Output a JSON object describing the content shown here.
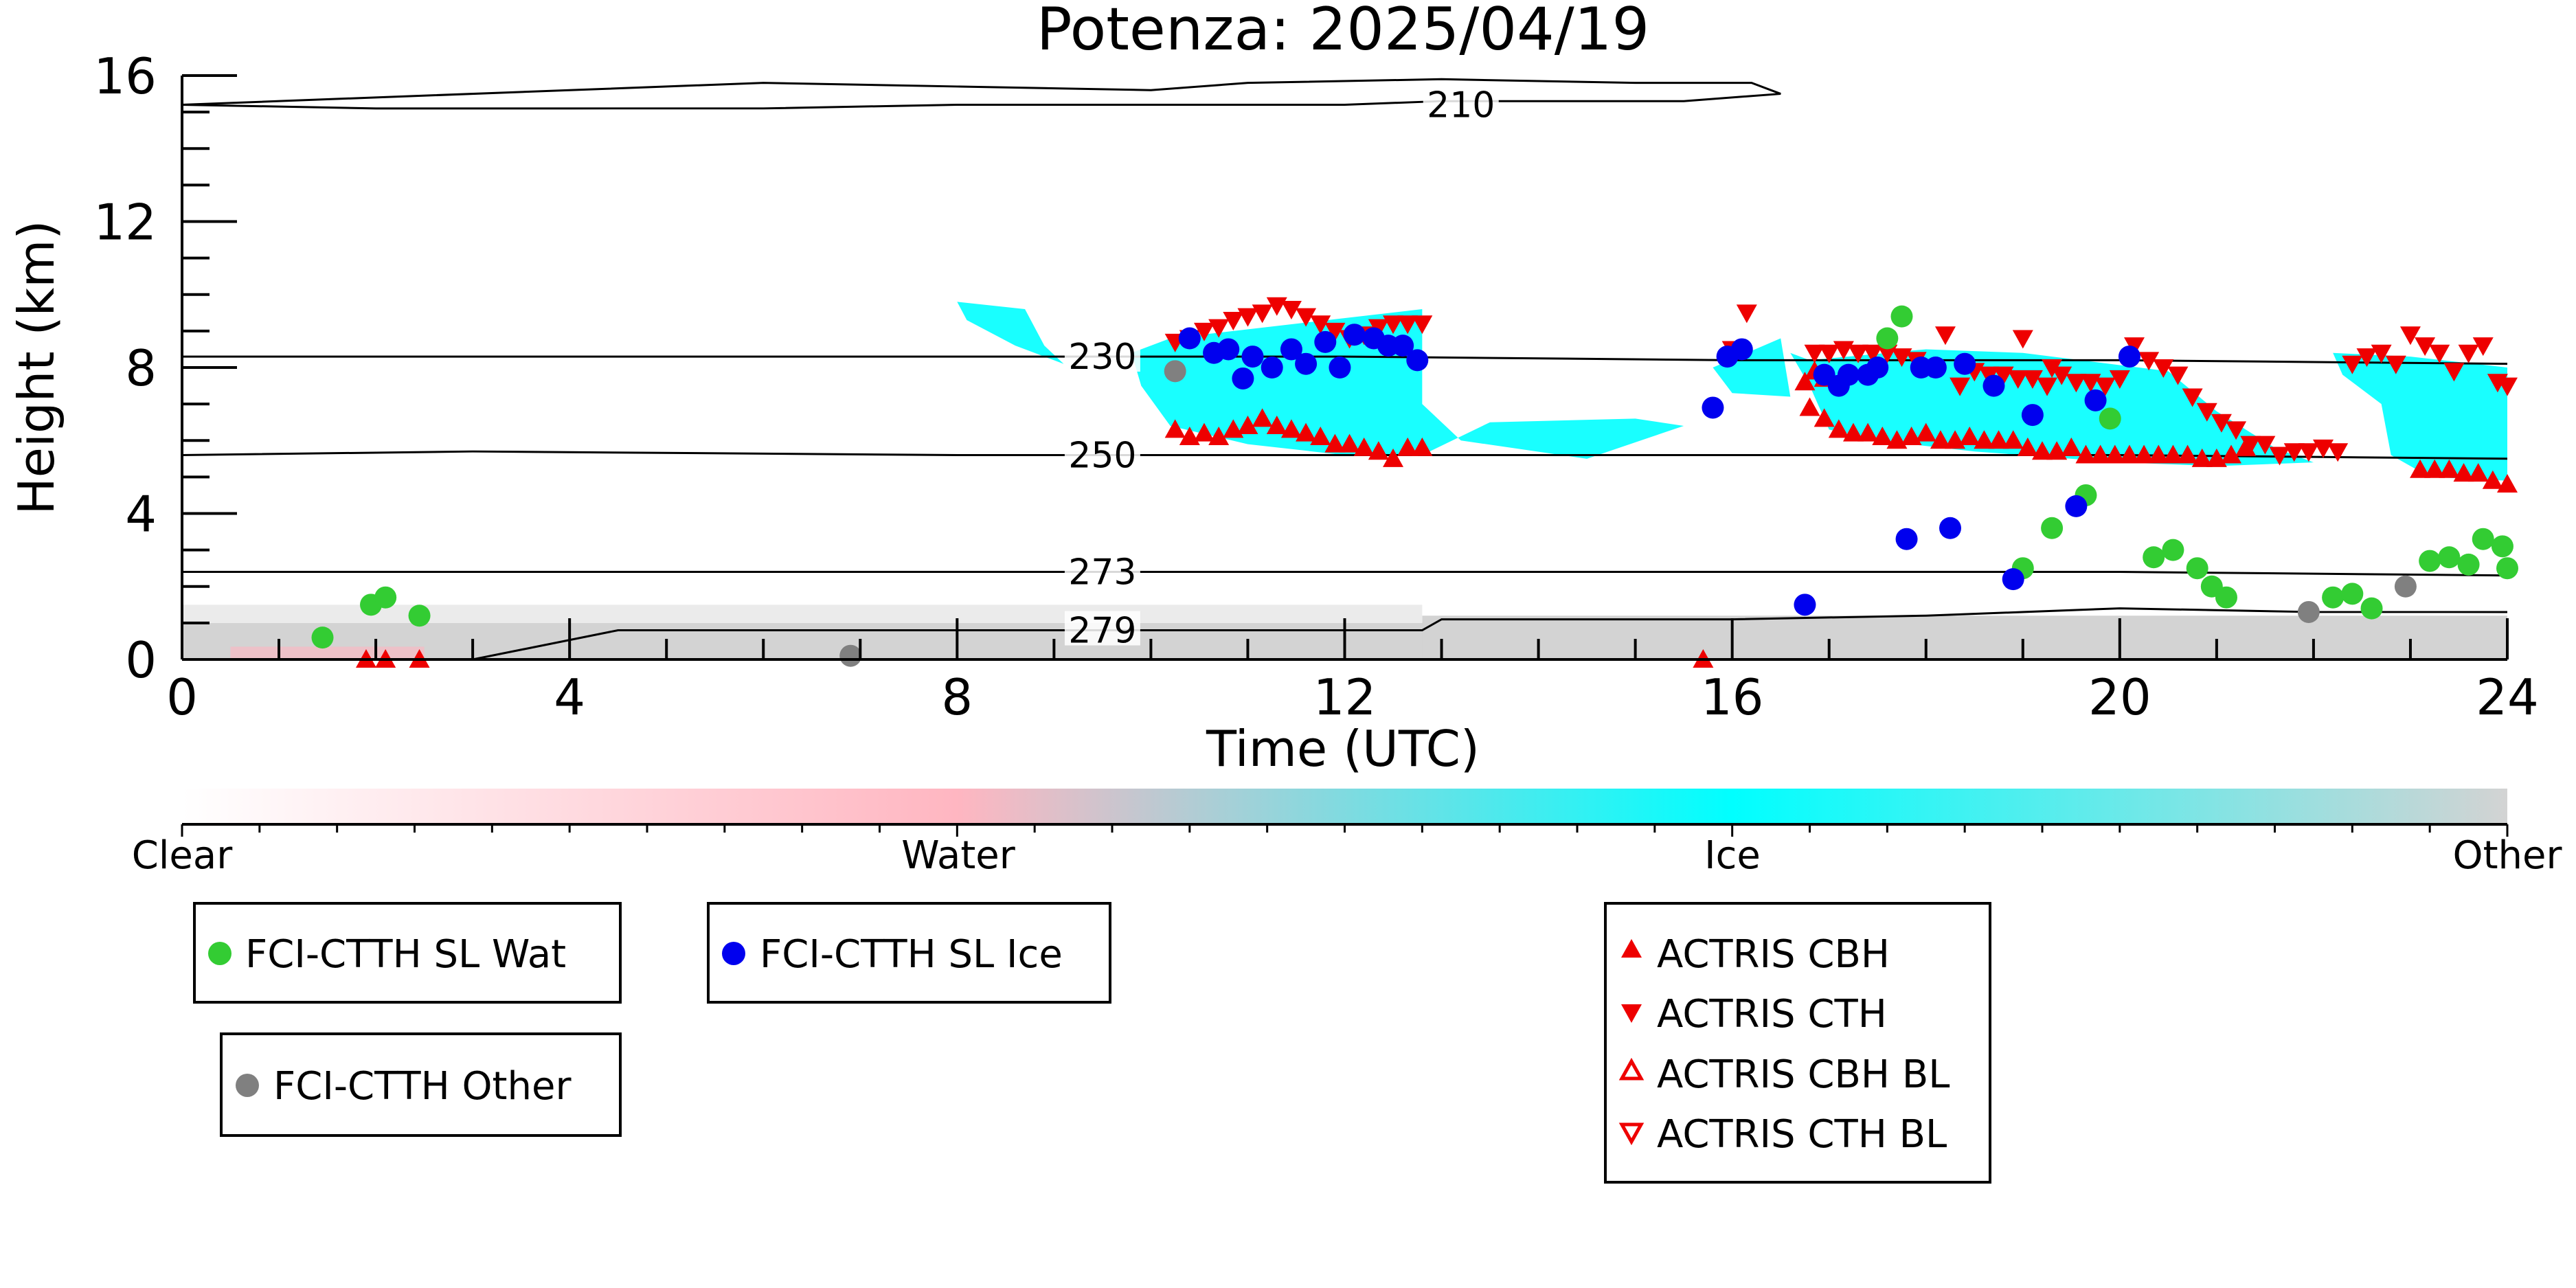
{
  "chart_data": {
    "type": "scatter",
    "title": "Potenza: 2025/04/19",
    "xlabel": "Time (UTC)",
    "ylabel": "Height (km)",
    "xlim": [
      0,
      24
    ],
    "ylim": [
      0,
      16
    ],
    "x_ticks": [
      "0",
      "4",
      "8",
      "12",
      "16",
      "20",
      "24"
    ],
    "y_ticks": [
      "0",
      "4",
      "8",
      "12",
      "16"
    ],
    "grid": false,
    "colorbar": {
      "labels": [
        "Clear",
        "Water",
        "Ice",
        "Other"
      ],
      "colors": [
        "#ffffff",
        "#ffb6c1",
        "#00ffff",
        "#d3d3d3"
      ]
    },
    "contours": [
      {
        "label": "210",
        "points": [
          [
            0,
            15.2
          ],
          [
            2,
            15.4
          ],
          [
            4,
            15.6
          ],
          [
            6,
            15.8
          ],
          [
            8,
            15.7
          ],
          [
            10,
            15.6
          ],
          [
            11,
            15.8
          ],
          [
            13,
            15.9
          ],
          [
            15,
            15.8
          ],
          [
            16.2,
            15.8
          ],
          [
            16.5,
            15.5
          ],
          [
            15.5,
            15.3
          ],
          [
            13,
            15.3
          ],
          [
            12,
            15.2
          ],
          [
            10,
            15.2
          ],
          [
            8,
            15.2
          ],
          [
            6,
            15.1
          ],
          [
            4,
            15.1
          ],
          [
            2,
            15.1
          ],
          [
            0,
            15.2
          ]
        ]
      },
      {
        "label": "230",
        "points": [
          [
            0,
            8.3
          ],
          [
            4,
            8.3
          ],
          [
            8,
            8.3
          ],
          [
            12,
            8.3
          ],
          [
            16,
            8.2
          ],
          [
            20,
            8.2
          ],
          [
            24,
            8.1
          ]
        ]
      },
      {
        "label": "250",
        "points": [
          [
            0,
            5.6
          ],
          [
            3,
            5.7
          ],
          [
            8,
            5.6
          ],
          [
            12,
            5.6
          ],
          [
            16,
            5.6
          ],
          [
            20,
            5.6
          ],
          [
            24,
            5.5
          ]
        ]
      },
      {
        "label": "273",
        "points": [
          [
            0,
            2.4
          ],
          [
            4,
            2.4
          ],
          [
            8,
            2.4
          ],
          [
            12,
            2.4
          ],
          [
            16,
            2.4
          ],
          [
            20,
            2.4
          ],
          [
            24,
            2.3
          ]
        ]
      },
      {
        "label": "279",
        "points": [
          [
            3,
            0
          ],
          [
            4.5,
            0.8
          ],
          [
            8,
            0.8
          ],
          [
            11,
            0.8
          ],
          [
            12.8,
            0.8
          ],
          [
            13,
            1.1
          ],
          [
            16,
            1.1
          ],
          [
            18,
            1.2
          ],
          [
            20,
            1.4
          ],
          [
            22,
            1.3
          ],
          [
            24,
            1.3
          ]
        ]
      }
    ],
    "series": [
      {
        "name": "FCI-CTTH SL Wat",
        "color": "#33cc33",
        "marker": "circle",
        "x": [
          1.45,
          1.95,
          2.1,
          2.45,
          17.6,
          17.75,
          19.0,
          19.3,
          19.65,
          19.9,
          20.35,
          20.55,
          20.8,
          20.95,
          21.1,
          22.2,
          22.4,
          22.6,
          23.2,
          23.4,
          23.6,
          23.75,
          23.95,
          24.0
        ],
        "y": [
          0.6,
          1.5,
          1.7,
          1.2,
          8.8,
          9.4,
          2.5,
          3.6,
          4.5,
          6.6,
          2.8,
          3.0,
          2.5,
          2.0,
          1.7,
          1.7,
          1.8,
          1.4,
          2.7,
          2.8,
          2.6,
          3.3,
          3.1,
          2.5
        ]
      },
      {
        "name": "FCI-CTTH SL Ice",
        "color": "#0000ee",
        "marker": "circle",
        "x": [
          10.4,
          10.65,
          10.8,
          10.95,
          11.05,
          11.25,
          11.45,
          11.6,
          11.8,
          11.95,
          12.1,
          12.3,
          12.45,
          12.6,
          12.75,
          15.8,
          15.95,
          16.1,
          16.75,
          16.95,
          17.1,
          17.2,
          17.4,
          17.5,
          17.8,
          17.95,
          18.1,
          18.25,
          18.4,
          18.7,
          18.9,
          19.1,
          19.55,
          19.75,
          20.1
        ],
        "y": [
          8.8,
          8.4,
          8.5,
          7.7,
          8.3,
          8.0,
          8.5,
          8.1,
          8.7,
          8.0,
          8.9,
          8.8,
          8.6,
          8.6,
          8.2,
          6.9,
          8.3,
          8.5,
          1.5,
          7.8,
          7.5,
          7.8,
          7.8,
          8.0,
          3.3,
          8.0,
          8.0,
          3.6,
          8.1,
          7.5,
          2.2,
          6.7,
          4.2,
          7.1,
          8.3
        ]
      },
      {
        "name": "FCI-CTTH Other",
        "color": "#808080",
        "marker": "circle",
        "x": [
          6.9,
          10.25,
          21.95,
          22.95
        ],
        "y": [
          0.1,
          7.9,
          1.3,
          2.0
        ]
      },
      {
        "name": "ACTRIS CBH",
        "color": "#ee0000",
        "marker": "triangle-up",
        "x": [
          1.9,
          2.1,
          2.45,
          10.25,
          10.4,
          10.55,
          10.7,
          10.85,
          11.0,
          11.15,
          11.3,
          11.45,
          11.6,
          11.75,
          11.9,
          12.05,
          12.2,
          12.35,
          12.5,
          12.65,
          12.8,
          15.7,
          16.8,
          16.95,
          17.1,
          17.25,
          17.4,
          17.55,
          17.7,
          17.85,
          18.0,
          18.15,
          18.3,
          18.45,
          18.6,
          18.75,
          18.9,
          19.05,
          19.2,
          19.35,
          19.5,
          19.65,
          19.8,
          19.95,
          20.1,
          20.25,
          20.4,
          20.55,
          20.7,
          20.85,
          21.0,
          21.15,
          21.3,
          16.75,
          16.85,
          16.95,
          23.1,
          23.25,
          23.4,
          23.55,
          23.7,
          23.85,
          24.0
        ],
        "y": [
          0.0,
          0.0,
          0.0,
          6.3,
          6.1,
          6.2,
          6.1,
          6.3,
          6.4,
          6.6,
          6.4,
          6.3,
          6.2,
          6.1,
          5.9,
          5.9,
          5.8,
          5.7,
          5.5,
          5.8,
          5.8,
          0.0,
          6.9,
          6.6,
          6.3,
          6.2,
          6.2,
          6.1,
          6.0,
          6.1,
          6.2,
          6.0,
          6.0,
          6.1,
          6.0,
          6.0,
          6.0,
          5.8,
          5.7,
          5.7,
          5.8,
          5.6,
          5.6,
          5.6,
          5.6,
          5.6,
          5.6,
          5.6,
          5.6,
          5.5,
          5.5,
          5.6,
          5.8,
          7.6,
          7.9,
          7.7,
          5.2,
          5.2,
          5.2,
          5.1,
          5.1,
          4.9,
          4.8
        ]
      },
      {
        "name": "ACTRIS CTH",
        "color": "#ee0000",
        "marker": "triangle-down",
        "x": [
          10.25,
          10.4,
          10.55,
          10.7,
          10.85,
          11.0,
          11.15,
          11.3,
          11.45,
          11.6,
          11.75,
          11.9,
          12.05,
          12.2,
          12.35,
          12.5,
          12.65,
          12.8,
          16.0,
          16.15,
          16.85,
          17.0,
          17.15,
          17.3,
          17.45,
          17.6,
          17.75,
          17.9,
          18.05,
          18.2,
          18.35,
          18.5,
          18.65,
          18.8,
          18.95,
          19.1,
          19.25,
          19.4,
          19.55,
          19.7,
          19.85,
          20.0,
          20.15,
          20.3,
          20.45,
          20.6,
          20.75,
          20.9,
          21.05,
          21.2,
          21.35,
          21.5,
          21.65,
          21.8,
          21.95,
          22.1,
          22.25,
          22.4,
          22.55,
          22.7,
          22.85,
          23.0,
          23.15,
          23.3,
          23.45,
          23.6,
          23.75,
          23.9,
          24.0,
          19.0,
          19.3
        ],
        "y": [
          8.7,
          8.8,
          9.0,
          9.1,
          9.3,
          9.4,
          9.5,
          9.7,
          9.6,
          9.4,
          9.2,
          9.0,
          8.8,
          8.9,
          9.1,
          9.2,
          9.2,
          9.2,
          8.5,
          9.5,
          8.4,
          8.4,
          8.5,
          8.4,
          8.4,
          8.4,
          8.3,
          8.2,
          8.0,
          8.9,
          7.5,
          7.9,
          7.8,
          7.8,
          7.7,
          7.7,
          7.5,
          7.8,
          7.6,
          7.6,
          7.5,
          7.7,
          8.6,
          8.2,
          8.0,
          7.8,
          7.2,
          6.8,
          6.5,
          6.3,
          5.9,
          5.9,
          5.6,
          5.7,
          5.7,
          5.8,
          5.7,
          8.1,
          8.3,
          8.4,
          8.1,
          8.9,
          8.6,
          8.4,
          7.9,
          8.4,
          8.6,
          7.6,
          7.5,
          8.8,
          8.0
        ]
      },
      {
        "name": "ACTRIS CBH BL",
        "color": "#ee0000",
        "marker": "triangle-up-open",
        "x": [],
        "y": []
      },
      {
        "name": "ACTRIS CTH BL",
        "color": "#ee0000",
        "marker": "triangle-down-open",
        "x": [],
        "y": []
      }
    ]
  }
}
